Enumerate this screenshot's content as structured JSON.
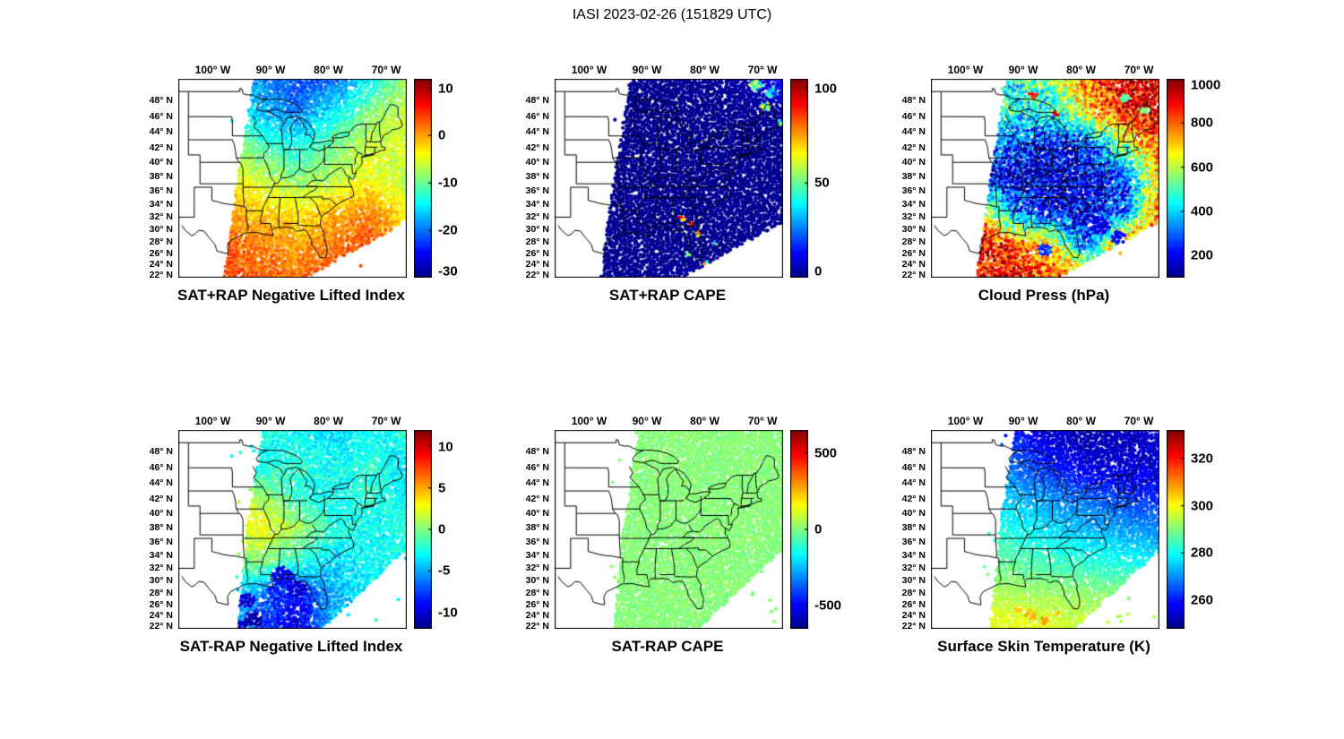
{
  "title": "IASI 2023-02-26 (151829 UTC)",
  "axes": {
    "lon_ticks": [
      {
        "label": "100° W",
        "lon": -100
      },
      {
        "label": "90° W",
        "lon": -90
      },
      {
        "label": "80° W",
        "lon": -80
      },
      {
        "label": "70° W",
        "lon": -70
      }
    ],
    "lat_ticks": [
      {
        "label": "48° N",
        "lat": 48
      },
      {
        "label": "46° N",
        "lat": 46
      },
      {
        "label": "44° N",
        "lat": 44
      },
      {
        "label": "42° N",
        "lat": 42
      },
      {
        "label": "40° N",
        "lat": 40
      },
      {
        "label": "38° N",
        "lat": 38
      },
      {
        "label": "36° N",
        "lat": 36
      },
      {
        "label": "34° N",
        "lat": 34
      },
      {
        "label": "32° N",
        "lat": 32
      },
      {
        "label": "30° N",
        "lat": 30
      },
      {
        "label": "28° N",
        "lat": 28
      },
      {
        "label": "26° N",
        "lat": 26
      },
      {
        "label": "24° N",
        "lat": 24
      },
      {
        "label": "22° N",
        "lat": 22
      }
    ],
    "lon_range": [
      -105.8,
      -66.3
    ],
    "lat_range": [
      21.8,
      50.4
    ]
  },
  "chart_data": [
    {
      "type": "scatter",
      "title": "SAT+RAP Negative Lifted Index",
      "colormap": "jet",
      "colorbar": {
        "vmin": -30,
        "vmax": 12,
        "ticks": [
          10,
          0,
          -10,
          -20,
          -30
        ]
      },
      "seed": 11,
      "noise": 2,
      "spot_noise": 2,
      "stray": 0.002,
      "swath": [
        [
          0.33,
          0
        ],
        [
          1.0,
          0
        ],
        [
          1.0,
          0.72
        ],
        [
          0.56,
          1.0
        ],
        [
          0.2,
          1.0
        ],
        [
          0.26,
          0.5
        ]
      ],
      "value_grid": [
        [
          -16,
          -19,
          -22,
          -21,
          -14,
          -8
        ],
        [
          -12,
          -17,
          -20,
          -15,
          -9,
          -6
        ],
        [
          -7,
          -11,
          -14,
          -10,
          -6,
          -5
        ],
        [
          -3,
          -6,
          -9,
          -7,
          -4,
          -7
        ],
        [
          0,
          -2,
          -3,
          -1,
          1,
          -4
        ],
        [
          3,
          2,
          0,
          2,
          4,
          1
        ],
        [
          4,
          3,
          2,
          4,
          5,
          3
        ]
      ],
      "spots": []
    },
    {
      "type": "scatter",
      "title": "SAT+RAP CAPE",
      "colormap": "jet",
      "colorbar": {
        "vmin": 0,
        "vmax": 105,
        "ticks": [
          100,
          50,
          0
        ]
      },
      "seed": 22,
      "noise": 1.5,
      "spot_noise": 20,
      "stray": 0.002,
      "swath": [
        [
          0.33,
          0
        ],
        [
          1.0,
          0
        ],
        [
          1.0,
          0.72
        ],
        [
          0.56,
          1.0
        ],
        [
          0.2,
          1.0
        ],
        [
          0.26,
          0.5
        ]
      ],
      "value_grid": [
        [
          2,
          2,
          2,
          2,
          4,
          15
        ],
        [
          2,
          2,
          2,
          2,
          2,
          3
        ],
        [
          2,
          2,
          2,
          2,
          2,
          2
        ],
        [
          2,
          2,
          2,
          2,
          2,
          2
        ],
        [
          2,
          2,
          2,
          2,
          2,
          2
        ],
        [
          2,
          2,
          2,
          2,
          2,
          2
        ],
        [
          2,
          2,
          3,
          2,
          2,
          2
        ]
      ],
      "spots": [
        {
          "x": 0.88,
          "y": 0.03,
          "r": 0.03,
          "v": 45
        },
        {
          "x": 0.95,
          "y": 0.07,
          "r": 0.03,
          "v": 30
        },
        {
          "x": 0.92,
          "y": 0.14,
          "r": 0.02,
          "v": 50
        },
        {
          "x": 0.99,
          "y": 0.22,
          "r": 0.02,
          "v": 35
        },
        {
          "x": 0.56,
          "y": 0.7,
          "r": 0.018,
          "v": 85
        },
        {
          "x": 0.6,
          "y": 0.73,
          "r": 0.015,
          "v": 100
        },
        {
          "x": 0.52,
          "y": 0.68,
          "r": 0.013,
          "v": 55
        },
        {
          "x": 0.63,
          "y": 0.78,
          "r": 0.013,
          "v": 70
        },
        {
          "x": 0.58,
          "y": 0.88,
          "r": 0.012,
          "v": 45
        },
        {
          "x": 0.66,
          "y": 0.93,
          "r": 0.012,
          "v": 60
        },
        {
          "x": 0.7,
          "y": 0.83,
          "r": 0.01,
          "v": 40
        }
      ]
    },
    {
      "type": "scatter",
      "title": "Cloud Press (hPa)",
      "colormap": "jet",
      "colorbar": {
        "vmin": 100,
        "vmax": 1000,
        "ticks": [
          1000,
          800,
          600,
          400,
          200
        ]
      },
      "seed": 33,
      "noise": 140,
      "spot_noise": 40,
      "stray": 0.002,
      "swath": [
        [
          0.33,
          0
        ],
        [
          1.0,
          0
        ],
        [
          1.0,
          0.72
        ],
        [
          0.56,
          1.0
        ],
        [
          0.2,
          1.0
        ],
        [
          0.26,
          0.5
        ]
      ],
      "value_grid": [
        [
          480,
          420,
          560,
          780,
          940,
          900
        ],
        [
          540,
          480,
          420,
          680,
          880,
          950
        ],
        [
          320,
          260,
          210,
          260,
          560,
          840
        ],
        [
          210,
          185,
          160,
          200,
          260,
          700
        ],
        [
          780,
          320,
          200,
          185,
          260,
          800
        ],
        [
          900,
          840,
          700,
          300,
          780,
          900
        ],
        [
          880,
          900,
          840,
          800,
          900,
          940
        ]
      ],
      "spots": [
        {
          "x": 0.74,
          "y": 0.74,
          "r": 0.045,
          "v": 190
        },
        {
          "x": 0.82,
          "y": 0.8,
          "r": 0.035,
          "v": 210
        },
        {
          "x": 0.5,
          "y": 0.86,
          "r": 0.03,
          "v": 260
        },
        {
          "x": 0.45,
          "y": 0.08,
          "r": 0.02,
          "v": 860
        },
        {
          "x": 0.55,
          "y": 0.18,
          "r": 0.015,
          "v": 900
        },
        {
          "x": 0.85,
          "y": 0.1,
          "r": 0.02,
          "v": 520
        },
        {
          "x": 0.93,
          "y": 0.16,
          "r": 0.02,
          "v": 560
        }
      ]
    },
    {
      "type": "scatter",
      "title": "SAT-RAP Negative Lifted Index",
      "colormap": "jet",
      "colorbar": {
        "vmin": -12,
        "vmax": 12,
        "ticks": [
          10,
          5,
          0,
          -5,
          -10
        ]
      },
      "seed": 44,
      "noise": 1.2,
      "spot_noise": 1,
      "stray": 0.012,
      "swath": [
        [
          0.37,
          0
        ],
        [
          1.0,
          0
        ],
        [
          1.0,
          0.6
        ],
        [
          0.63,
          1.0
        ],
        [
          0.26,
          1.0
        ],
        [
          0.3,
          0.5
        ]
      ],
      "value_grid": [
        [
          -3,
          -2,
          -3,
          -4,
          -3,
          -2
        ],
        [
          -2,
          -3,
          -2,
          -3,
          -2,
          -4
        ],
        [
          0,
          1,
          -2,
          -3,
          -2,
          -3
        ],
        [
          2,
          3,
          1,
          -2,
          -3,
          -2
        ],
        [
          -1,
          0,
          -2,
          -4,
          -3,
          -3
        ],
        [
          -3,
          -6,
          -9,
          -5,
          -3,
          -2
        ],
        [
          -3,
          -8,
          -10,
          -4,
          -2,
          -3
        ]
      ],
      "spots": [
        {
          "x": 0.3,
          "y": 0.86,
          "r": 0.04,
          "v": -10
        },
        {
          "x": 0.33,
          "y": 0.95,
          "r": 0.04,
          "v": -11
        },
        {
          "x": 0.28,
          "y": 0.99,
          "r": 0.03,
          "v": -10
        },
        {
          "x": 0.46,
          "y": 0.74,
          "r": 0.05,
          "v": -9
        },
        {
          "x": 0.52,
          "y": 0.8,
          "r": 0.045,
          "v": -10
        },
        {
          "x": 0.42,
          "y": 0.82,
          "r": 0.035,
          "v": -8
        },
        {
          "x": 0.56,
          "y": 0.9,
          "r": 0.03,
          "v": -9
        }
      ]
    },
    {
      "type": "scatter",
      "title": "SAT-RAP CAPE",
      "colormap": "jet",
      "colorbar": {
        "vmin": -650,
        "vmax": 650,
        "ticks": [
          500,
          0,
          -500
        ]
      },
      "seed": 55,
      "noise": 25,
      "spot_noise": 10,
      "stray": 0.012,
      "swath": [
        [
          0.37,
          0
        ],
        [
          1.0,
          0
        ],
        [
          1.0,
          0.6
        ],
        [
          0.63,
          1.0
        ],
        [
          0.26,
          1.0
        ],
        [
          0.3,
          0.5
        ]
      ],
      "value_grid": [
        [
          10,
          10,
          10,
          10,
          10,
          10
        ],
        [
          10,
          10,
          10,
          10,
          10,
          10
        ],
        [
          10,
          10,
          10,
          10,
          10,
          10
        ],
        [
          10,
          10,
          10,
          10,
          10,
          10
        ],
        [
          10,
          10,
          10,
          10,
          10,
          10
        ],
        [
          10,
          10,
          10,
          10,
          10,
          10
        ],
        [
          10,
          10,
          10,
          10,
          10,
          10
        ]
      ],
      "spots": []
    },
    {
      "type": "scatter",
      "title": "Surface Skin Temperature (K)",
      "colormap": "jet",
      "colorbar": {
        "vmin": 248,
        "vmax": 332,
        "ticks": [
          320,
          300,
          280,
          260
        ]
      },
      "seed": 66,
      "noise": 2.5,
      "spot_noise": 2,
      "stray": 0.012,
      "swath": [
        [
          0.37,
          0
        ],
        [
          1.0,
          0
        ],
        [
          1.0,
          0.6
        ],
        [
          0.63,
          1.0
        ],
        [
          0.26,
          1.0
        ],
        [
          0.3,
          0.5
        ]
      ],
      "value_grid": [
        [
          266,
          260,
          254,
          251,
          253,
          255
        ],
        [
          271,
          266,
          260,
          255,
          254,
          257
        ],
        [
          277,
          274,
          270,
          266,
          263,
          261
        ],
        [
          283,
          281,
          277,
          274,
          272,
          270
        ],
        [
          289,
          287,
          285,
          283,
          281,
          279
        ],
        [
          295,
          294,
          293,
          292,
          291,
          290
        ],
        [
          299,
          300,
          298,
          297,
          296,
          295
        ]
      ],
      "spots": [
        {
          "x": 0.44,
          "y": 0.93,
          "r": 0.025,
          "v": 306
        },
        {
          "x": 0.5,
          "y": 0.96,
          "r": 0.02,
          "v": 308
        },
        {
          "x": 0.38,
          "y": 0.9,
          "r": 0.018,
          "v": 304
        },
        {
          "x": 0.56,
          "y": 0.93,
          "r": 0.015,
          "v": 305
        }
      ]
    }
  ]
}
